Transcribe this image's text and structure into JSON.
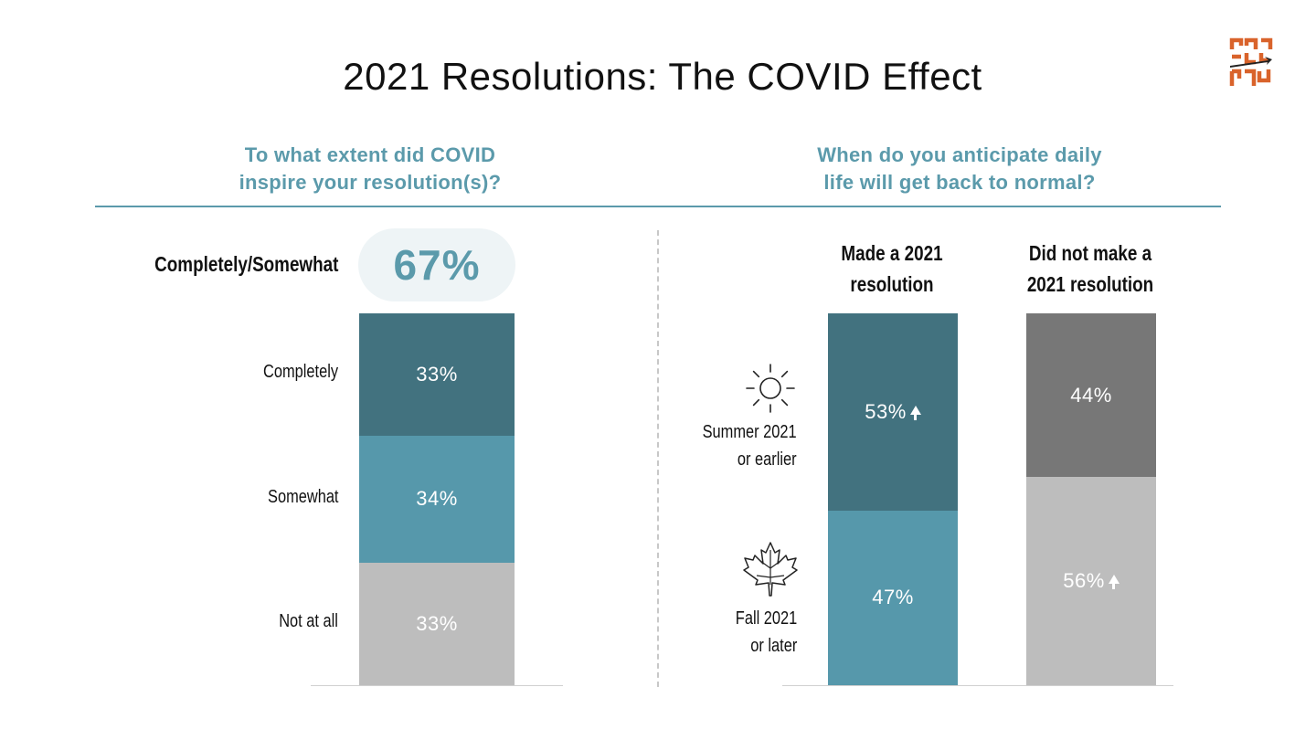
{
  "title": "2021 Resolutions: The COVID Effect",
  "left_question": [
    "To what extent did COVID",
    "inspire your resolution(s)?"
  ],
  "right_question": [
    "When do you anticipate daily",
    "life will get back to normal?"
  ],
  "summary": {
    "label": "Completely/Somewhat",
    "value": "67%"
  },
  "colors": {
    "accent": "#5b9aab",
    "dark_teal": "#42727f",
    "teal": "#5698ab",
    "light_gray": "#bdbdbd",
    "dark_gray": "#777777",
    "pill_bg": "#eef4f6"
  },
  "icons": {
    "brand": "maze-arrow-logo-icon",
    "summer": "sun-icon",
    "fall": "maple-leaf-icon"
  },
  "chart_data": [
    {
      "type": "bar",
      "stacked": true,
      "categories": [
        "Completely",
        "Somewhat",
        "Not at all"
      ],
      "values": [
        33,
        34,
        33
      ],
      "labels": [
        "33%",
        "34%",
        "33%"
      ],
      "colors": [
        "#42727f",
        "#5698ab",
        "#bdbdbd"
      ]
    },
    {
      "type": "bar",
      "stacked": true,
      "categories": [
        "Made a 2021 resolution",
        "Did not make a 2021 resolution"
      ],
      "category_lines": [
        [
          "Made a 2021",
          "resolution"
        ],
        [
          "Did not make a",
          "2021 resolution"
        ]
      ],
      "series": [
        {
          "name": "Summer 2021 or earlier",
          "name_lines": [
            "Summer 2021",
            "or earlier"
          ],
          "values": [
            53,
            44
          ],
          "labels": [
            "53%",
            "44%"
          ],
          "up_arrow": [
            true,
            false
          ],
          "colors": [
            "#42727f",
            "#777777"
          ]
        },
        {
          "name": "Fall 2021 or later",
          "name_lines": [
            "Fall 2021",
            "or later"
          ],
          "values": [
            47,
            56
          ],
          "labels": [
            "47%",
            "56%"
          ],
          "up_arrow": [
            false,
            true
          ],
          "colors": [
            "#5698ab",
            "#bdbdbd"
          ]
        }
      ]
    }
  ]
}
